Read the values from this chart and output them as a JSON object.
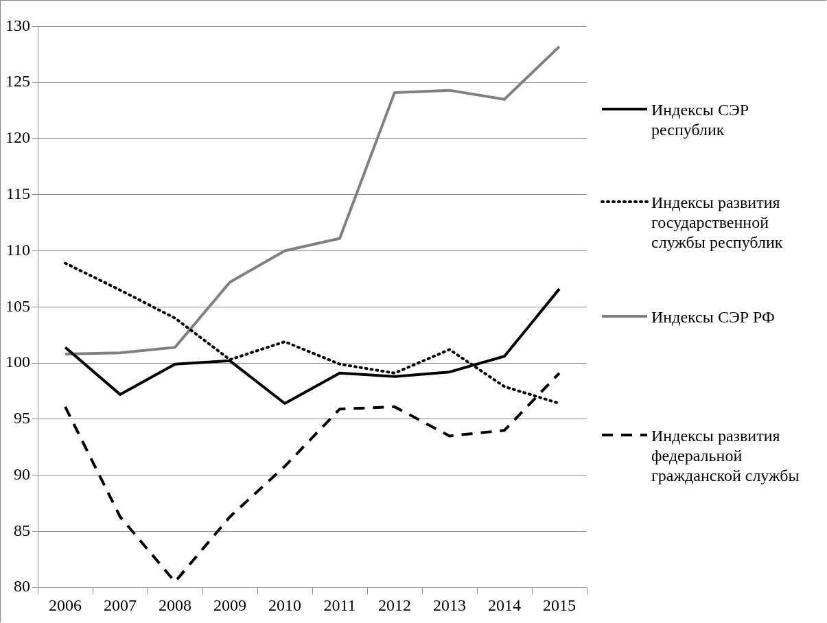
{
  "chart_data": {
    "type": "line",
    "categories": [
      "2006",
      "2007",
      "2008",
      "2009",
      "2010",
      "2011",
      "2012",
      "2013",
      "2014",
      "2015"
    ],
    "series": [
      {
        "name": "Индексы СЭР республик",
        "color": "#000000",
        "line_style": "solid",
        "values": [
          101.4,
          97.2,
          99.9,
          100.2,
          96.4,
          99.1,
          98.8,
          99.2,
          100.6,
          106.6
        ]
      },
      {
        "name": "Индексы развития государственной службы республик",
        "color": "#000000",
        "line_style": "dotted",
        "values": [
          108.9,
          106.5,
          104.0,
          100.3,
          101.9,
          99.9,
          99.1,
          101.2,
          97.9,
          96.4
        ]
      },
      {
        "name": "Индексы СЭР РФ",
        "color": "#808080",
        "line_style": "solid",
        "values": [
          100.8,
          100.9,
          101.4,
          107.2,
          110.0,
          111.1,
          124.1,
          124.3,
          123.5,
          128.2
        ]
      },
      {
        "name": "Индексы развития федеральной гражданской службы",
        "color": "#000000",
        "line_style": "dashed",
        "values": [
          96.1,
          86.3,
          80.5,
          86.3,
          90.8,
          95.9,
          96.1,
          93.5,
          94.0,
          99.1
        ]
      }
    ],
    "ylim": [
      80,
      130
    ],
    "yticks": [
      80,
      85,
      90,
      95,
      100,
      105,
      110,
      115,
      120,
      125,
      130
    ],
    "grid": "y",
    "legend": "right",
    "marker": "none"
  }
}
